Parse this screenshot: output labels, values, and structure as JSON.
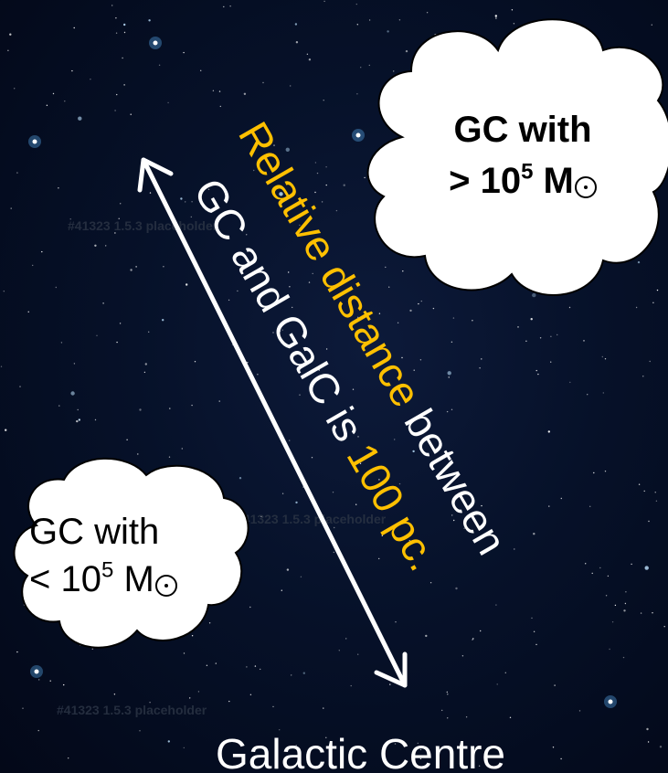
{
  "big_cloud": {
    "line1": "GC with",
    "line2_prefix": "> 10",
    "line2_exp": "5",
    "line2_unit": " M"
  },
  "small_cloud": {
    "line1": "GC with",
    "line2_prefix": "< 10",
    "line2_exp": "5",
    "line2_unit": " M"
  },
  "relative_text": {
    "line1_orange": "Relative distance",
    "line1_white": " between",
    "line2_white": "GC and GalC is ",
    "line2_orange": "100 pc."
  },
  "galactic_centre_label": "Galactic Centre",
  "ghost_labels": [
    "#41323 1.5.3 placeholder",
    "#41323 1.5.3 placeholder",
    "#41323 1.5.3 placeholder"
  ],
  "colors": {
    "background": "#061129",
    "highlight": "#ffc000",
    "text": "#ffffff",
    "cloud_fill": "#ffffff",
    "cloud_stroke": "#000000"
  },
  "icons": {
    "double_arrow": "double-headed-arrow-icon",
    "sun_symbol": "solar-mass-symbol-icon"
  }
}
